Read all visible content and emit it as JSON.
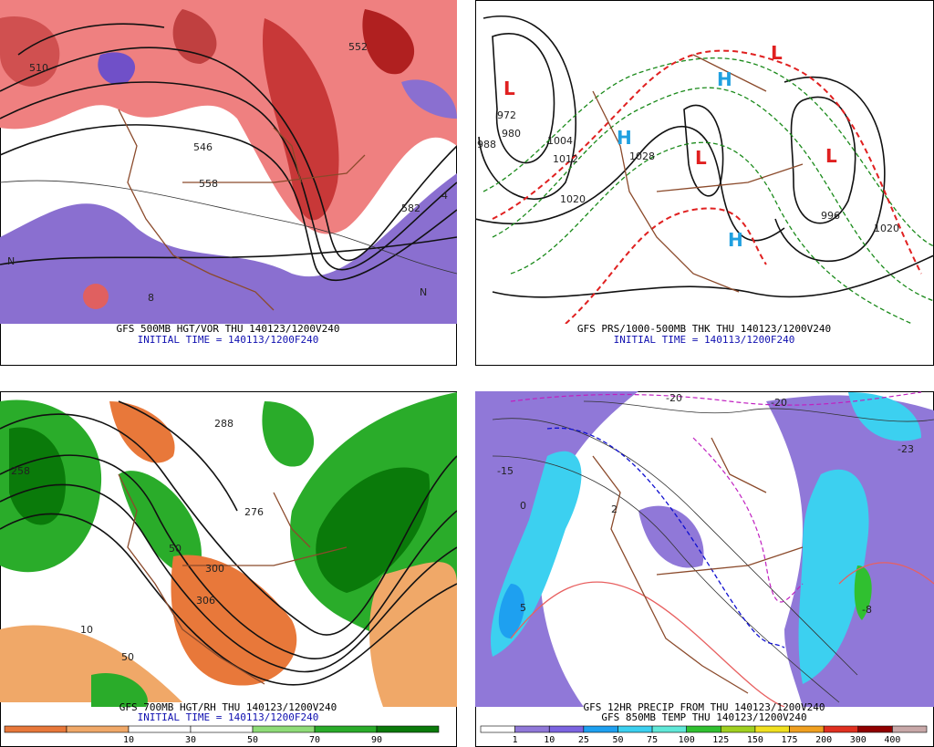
{
  "panels": [
    {
      "caption": "GFS 500MB HGT/VOR THU 140123/1200V240",
      "initial_time": "INITIAL TIME = 140113/1200F240",
      "labels": [
        "510",
        "546",
        "552",
        "558",
        "582",
        "N",
        "N",
        "4",
        "8"
      ]
    },
    {
      "caption": "GFS PRS/1000-500MB THK THU 140123/1200V240",
      "initial_time": "INITIAL TIME = 140113/1200F240",
      "labels": [
        "L",
        "L",
        "L",
        "L",
        "H",
        "H",
        "H",
        "972",
        "980",
        "988",
        "1004",
        "1012",
        "1020",
        "1020",
        "1028",
        "996"
      ]
    },
    {
      "caption": "GFS 700MB HGT/RH THU 140123/1200V240",
      "initial_time": "INITIAL TIME = 140113/1200F240",
      "labels": [
        "258",
        "276",
        "288",
        "300",
        "306",
        "10",
        "50",
        "50"
      ],
      "legend": {
        "labels": [
          "10",
          "30",
          "50",
          "70",
          "90"
        ],
        "colors": [
          "#e8783a",
          "#f0a868",
          "#ffffff",
          "#ffffff",
          "#8fdc78",
          "#2aac2a",
          "#0a7a0a"
        ]
      }
    },
    {
      "caption": "GFS 12HR PRECIP FROM THU 140123/1200V240",
      "caption2": "GFS 850MB TEMP THU 140123/1200V240",
      "labels": [
        "-20",
        "-20",
        "0",
        "2",
        "5",
        "-23",
        "-15",
        "-8"
      ],
      "legend": {
        "labels": [
          "1",
          "10",
          "25",
          "50",
          "75",
          "100",
          "125",
          "150",
          "175",
          "200",
          "300",
          "400"
        ],
        "colors": [
          "#ffffff",
          "#9078d8",
          "#7c64e0",
          "#1ea0f0",
          "#3cd0f0",
          "#60e8d8",
          "#30c030",
          "#a0d020",
          "#f0e020",
          "#f0a020",
          "#e03020",
          "#900000",
          "#c8a8a8"
        ]
      }
    }
  ]
}
